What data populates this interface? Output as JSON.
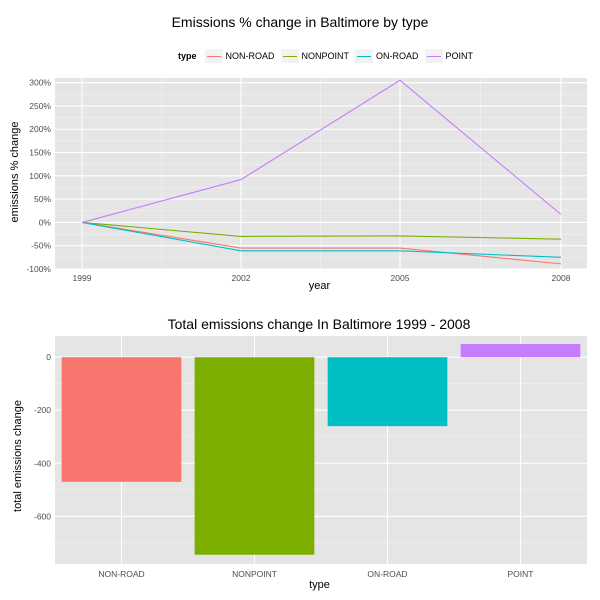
{
  "chart_data": [
    {
      "type": "line",
      "title": "Emissions % change in Baltimore by type",
      "xlabel": "year",
      "ylabel": "emissions % change",
      "legend_title": "type",
      "legend_position": "top",
      "grid": true,
      "x": [
        "1999",
        "2002",
        "2005",
        "2008"
      ],
      "yticks": [
        "-100%",
        "-50%",
        "0%",
        "50%",
        "100%",
        "150%",
        "200%",
        "250%",
        "300%"
      ],
      "ylim": [
        -100,
        310
      ],
      "series": [
        {
          "name": "NON-ROAD",
          "color": "#F8766D",
          "values": [
            0,
            -55,
            -55,
            -89
          ]
        },
        {
          "name": "NONPOINT",
          "color": "#7CAE00",
          "values": [
            0,
            -30,
            -29,
            -36
          ]
        },
        {
          "name": "ON-ROAD",
          "color": "#00BFC4",
          "values": [
            0,
            -61,
            -61,
            -75
          ]
        },
        {
          "name": "POINT",
          "color": "#C77CFF",
          "values": [
            0,
            92,
            305,
            17
          ]
        }
      ]
    },
    {
      "type": "bar",
      "title": "Total emissions change In Baltimore 1999 - 2008",
      "xlabel": "type",
      "ylabel": "total emissions change",
      "grid": true,
      "categories": [
        "NON-ROAD",
        "NONPOINT",
        "ON-ROAD",
        "POINT"
      ],
      "colors": [
        "#F8766D",
        "#7CAE00",
        "#00BFC4",
        "#C77CFF"
      ],
      "values": [
        -470,
        -745,
        -260,
        50
      ],
      "yticks": [
        "-600",
        "-400",
        "-200",
        "0"
      ],
      "ylim": [
        -780,
        80
      ]
    }
  ]
}
